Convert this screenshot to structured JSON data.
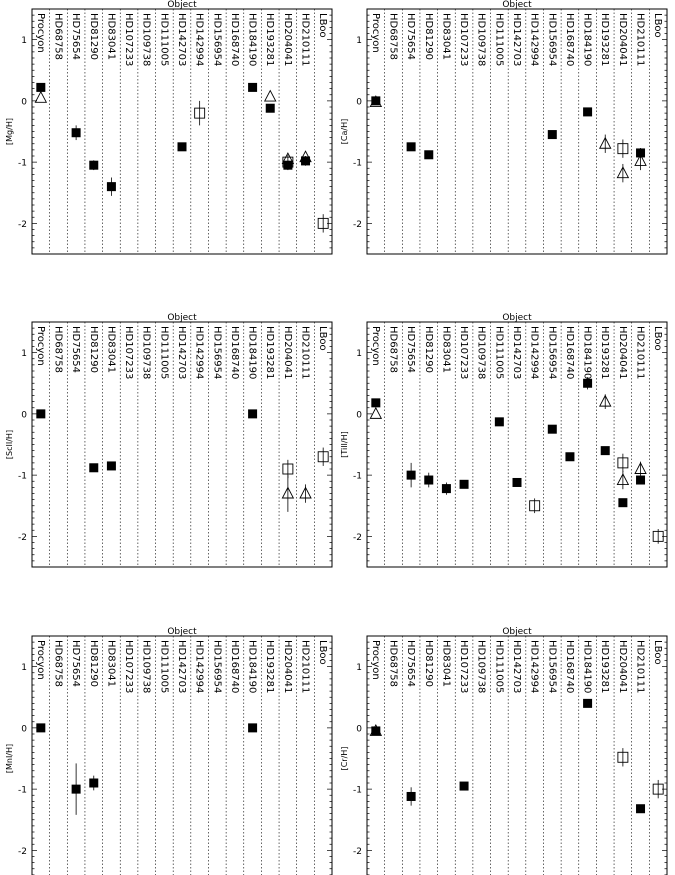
{
  "figure": {
    "xlabel": "Object",
    "objects": [
      "Procyon",
      "HD68758",
      "HD75654",
      "HD81290",
      "HD83041",
      "HD107233",
      "HD109738",
      "HD111005",
      "HD142703",
      "HD142994",
      "HD156954",
      "HD168740",
      "HD184190",
      "HD193281",
      "HD204041",
      "HD210111",
      "LBoo"
    ],
    "yticks": [
      -2,
      -1,
      0,
      1
    ],
    "ylim": [
      -2.5,
      1.5
    ]
  },
  "chart_data": [
    {
      "type": "scatter",
      "ylabel": "[Mg/H]",
      "series": [
        {
          "marker": "filled-square",
          "points": [
            {
              "obj": "Procyon",
              "y": 0.22,
              "err": 0.0
            },
            {
              "obj": "HD75654",
              "y": -0.52,
              "err": 0.12
            },
            {
              "obj": "HD81290",
              "y": -1.05,
              "err": 0.08
            },
            {
              "obj": "HD83041",
              "y": -1.4,
              "err": 0.15
            },
            {
              "obj": "HD142703",
              "y": -0.75,
              "err": 0.0
            },
            {
              "obj": "HD184190",
              "y": 0.22,
              "err": 0.0
            },
            {
              "obj": "HD193281",
              "y": -0.12,
              "err": 0.0
            },
            {
              "obj": "HD204041",
              "y": -1.05,
              "err": 0.08
            },
            {
              "obj": "HD210111",
              "y": -0.98,
              "err": 0.08
            }
          ]
        },
        {
          "marker": "open-square",
          "points": [
            {
              "obj": "HD142994",
              "y": -0.2,
              "err": 0.2
            },
            {
              "obj": "HD204041",
              "y": -1.0,
              "err": 0.12
            },
            {
              "obj": "LBoo",
              "y": -2.0,
              "err": 0.15
            }
          ]
        },
        {
          "marker": "open-triangle",
          "points": [
            {
              "obj": "Procyon",
              "y": 0.05,
              "err": 0.0
            },
            {
              "obj": "HD193281",
              "y": 0.07,
              "err": 0.0
            },
            {
              "obj": "HD204041",
              "y": -0.95,
              "err": 0.0
            },
            {
              "obj": "HD210111",
              "y": -0.92,
              "err": 0.0
            }
          ]
        }
      ]
    },
    {
      "type": "scatter",
      "ylabel": "[Ca/H]",
      "series": [
        {
          "marker": "filled-square",
          "points": [
            {
              "obj": "Procyon",
              "y": 0.0,
              "err": 0.0
            },
            {
              "obj": "HD75654",
              "y": -0.75,
              "err": 0.0
            },
            {
              "obj": "HD81290",
              "y": -0.88,
              "err": 0.0
            },
            {
              "obj": "HD156954",
              "y": -0.55,
              "err": 0.0
            },
            {
              "obj": "HD184190",
              "y": -0.18,
              "err": 0.0
            },
            {
              "obj": "HD210111",
              "y": -0.85,
              "err": 0.08
            }
          ]
        },
        {
          "marker": "open-square",
          "points": [
            {
              "obj": "HD204041",
              "y": -0.78,
              "err": 0.15
            }
          ]
        },
        {
          "marker": "open-triangle",
          "points": [
            {
              "obj": "Procyon",
              "y": -0.02,
              "err": 0.0
            },
            {
              "obj": "HD193281",
              "y": -0.7,
              "err": 0.15
            },
            {
              "obj": "HD204041",
              "y": -1.18,
              "err": 0.15
            },
            {
              "obj": "HD210111",
              "y": -0.98,
              "err": 0.15
            }
          ]
        }
      ]
    },
    {
      "type": "scatter",
      "ylabel": "[ScII/H]",
      "series": [
        {
          "marker": "filled-square",
          "points": [
            {
              "obj": "Procyon",
              "y": 0.0,
              "err": 0.0
            },
            {
              "obj": "HD81290",
              "y": -0.88,
              "err": 0.0
            },
            {
              "obj": "HD83041",
              "y": -0.85,
              "err": 0.0
            },
            {
              "obj": "HD184190",
              "y": 0.0,
              "err": 0.0
            }
          ]
        },
        {
          "marker": "open-square",
          "points": [
            {
              "obj": "HD204041",
              "y": -0.9,
              "err": 0.15
            },
            {
              "obj": "LBoo",
              "y": -0.7,
              "err": 0.15
            }
          ]
        },
        {
          "marker": "open-triangle",
          "points": [
            {
              "obj": "HD204041",
              "y": -1.3,
              "err": 0.3
            },
            {
              "obj": "HD210111",
              "y": -1.3,
              "err": 0.15
            }
          ]
        }
      ]
    },
    {
      "type": "scatter",
      "ylabel": "[TiII/H]",
      "series": [
        {
          "marker": "filled-square",
          "points": [
            {
              "obj": "Procyon",
              "y": 0.18,
              "err": 0.0
            },
            {
              "obj": "HD75654",
              "y": -1.0,
              "err": 0.2
            },
            {
              "obj": "HD81290",
              "y": -1.08,
              "err": 0.12
            },
            {
              "obj": "HD83041",
              "y": -1.22,
              "err": 0.1
            },
            {
              "obj": "HD107233",
              "y": -1.15,
              "err": 0.0
            },
            {
              "obj": "HD111005",
              "y": -0.13,
              "err": 0.0
            },
            {
              "obj": "HD142703",
              "y": -1.12,
              "err": 0.0
            },
            {
              "obj": "HD156954",
              "y": -0.25,
              "err": 0.0
            },
            {
              "obj": "HD168740",
              "y": -0.7,
              "err": 0.0
            },
            {
              "obj": "HD184190",
              "y": 0.5,
              "err": 0.1
            },
            {
              "obj": "HD193281",
              "y": -0.6,
              "err": 0.0
            },
            {
              "obj": "HD204041",
              "y": -1.45,
              "err": 0.0
            },
            {
              "obj": "HD210111",
              "y": -1.08,
              "err": 0.0
            }
          ]
        },
        {
          "marker": "open-square",
          "points": [
            {
              "obj": "HD142994",
              "y": -1.5,
              "err": 0.12
            },
            {
              "obj": "HD204041",
              "y": -0.8,
              "err": 0.15
            },
            {
              "obj": "LBoo",
              "y": -2.0,
              "err": 0.12
            }
          ]
        },
        {
          "marker": "open-triangle",
          "points": [
            {
              "obj": "Procyon",
              "y": 0.0,
              "err": 0.0
            },
            {
              "obj": "HD193281",
              "y": 0.2,
              "err": 0.12
            },
            {
              "obj": "HD204041",
              "y": -1.08,
              "err": 0.15
            },
            {
              "obj": "HD210111",
              "y": -0.9,
              "err": 0.12
            }
          ]
        }
      ]
    },
    {
      "type": "scatter",
      "ylabel": "[MnI/H]",
      "series": [
        {
          "marker": "filled-square",
          "points": [
            {
              "obj": "Procyon",
              "y": 0.0,
              "err": 0.0
            },
            {
              "obj": "HD75654",
              "y": -1.0,
              "err": 0.42
            },
            {
              "obj": "HD81290",
              "y": -0.9,
              "err": 0.12
            },
            {
              "obj": "HD184190",
              "y": 0.0,
              "err": 0.0
            }
          ]
        }
      ]
    },
    {
      "type": "scatter",
      "ylabel": "[Cr/H]",
      "series": [
        {
          "marker": "filled-square",
          "points": [
            {
              "obj": "Procyon",
              "y": -0.05,
              "err": 0.0
            },
            {
              "obj": "HD75654",
              "y": -1.12,
              "err": 0.15
            },
            {
              "obj": "HD107233",
              "y": -0.95,
              "err": 0.0
            },
            {
              "obj": "HD184190",
              "y": 0.4,
              "err": 0.0
            },
            {
              "obj": "HD210111",
              "y": -1.32,
              "err": 0.0
            }
          ]
        },
        {
          "marker": "open-square",
          "points": [
            {
              "obj": "HD204041",
              "y": -0.48,
              "err": 0.15
            },
            {
              "obj": "LBoo",
              "y": -1.0,
              "err": 0.15
            }
          ]
        },
        {
          "marker": "open-triangle",
          "points": [
            {
              "obj": "Procyon",
              "y": -0.05,
              "err": 0.0
            }
          ]
        }
      ]
    }
  ]
}
